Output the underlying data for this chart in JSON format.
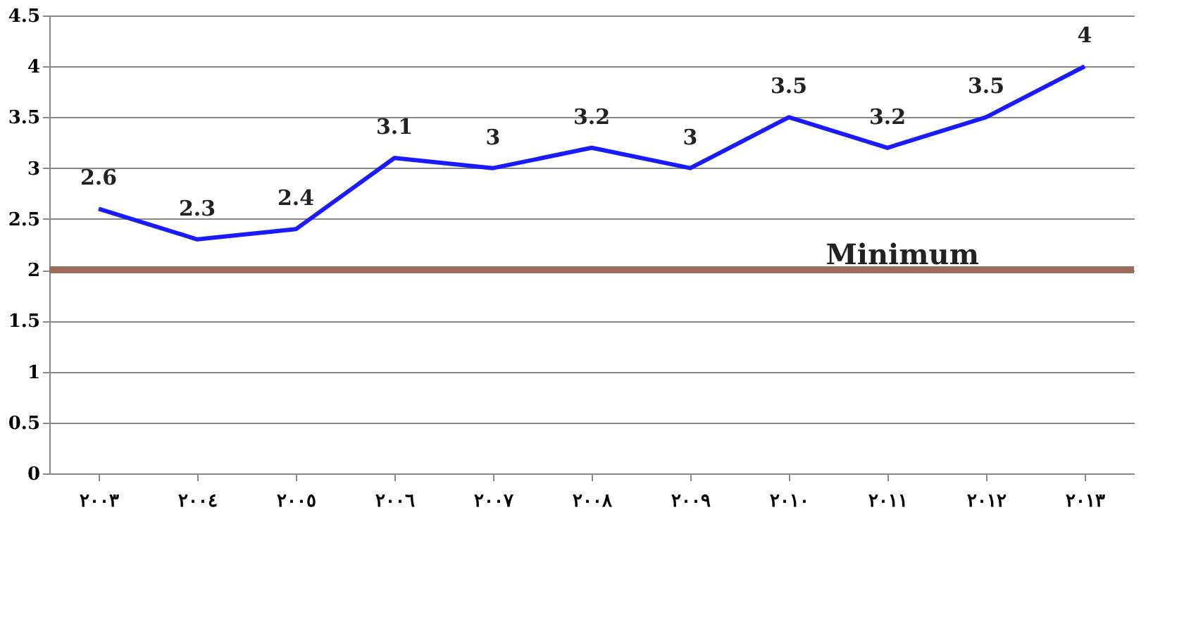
{
  "chart_data": {
    "type": "line",
    "categories": [
      "٢٠٠٣",
      "٢٠٠٤",
      "٢٠٠٥",
      "٢٠٠٦",
      "٢٠٠٧",
      "٢٠٠٨",
      "٢٠٠٩",
      "٢٠١٠",
      "٢٠١١",
      "٢٠١٢",
      "٢٠١٣"
    ],
    "series": [
      {
        "color": "#1a1aff",
        "values": [
          2.6,
          2.3,
          2.4,
          3.1,
          3,
          3.2,
          3,
          3.5,
          3.2,
          3.5,
          4
        ]
      }
    ],
    "ylim": [
      0,
      4.5
    ],
    "yticks": [
      0,
      0.5,
      1,
      1.5,
      2,
      2.5,
      3,
      3.5,
      4,
      4.5
    ],
    "grid": "y",
    "data_labels": true,
    "marker": "none",
    "line_style": "solid",
    "ref_lines": [
      {
        "axis": "y",
        "value": 2,
        "label": "Minimum",
        "color": "#9e6b5f"
      }
    ]
  }
}
